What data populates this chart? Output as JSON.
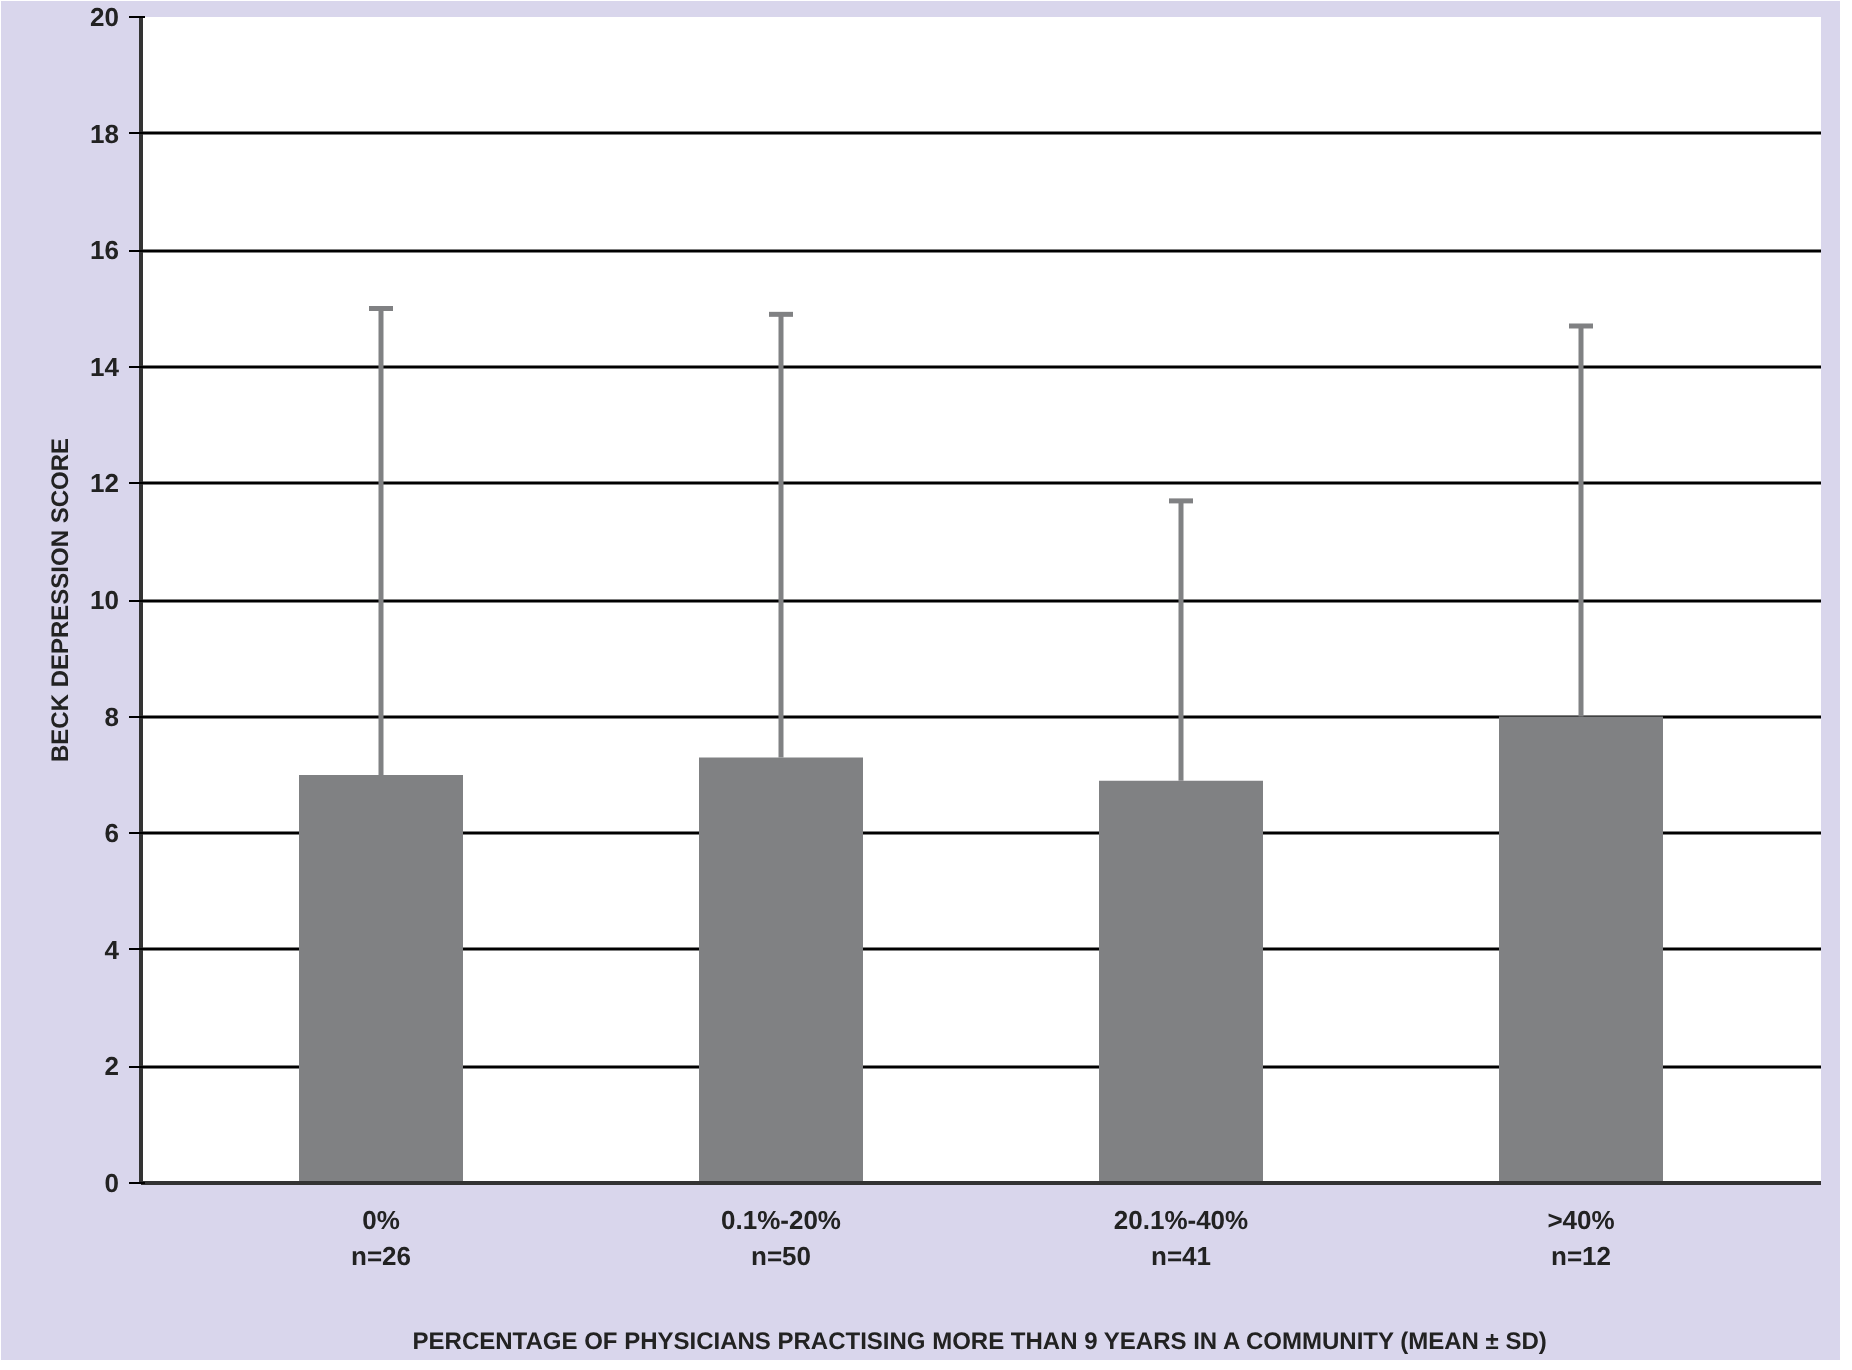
{
  "chart_data": {
    "type": "bar",
    "xlabel": "PERCENTAGE OF PHYSICIANS PRACTISING MORE THAN 9 YEARS IN A COMMUNITY (MEAN ± SD)",
    "ylabel": "BECK DEPRESSION SCORE",
    "categories": [
      "0%\nn=26",
      "0.1%-20%\nn=50",
      "20.1%-40%\nn=41",
      ">40%\nn=12"
    ],
    "values": [
      7.0,
      7.3,
      6.9,
      8.0
    ],
    "errors": [
      [
        7.0,
        15.0
      ],
      [
        7.3,
        14.9
      ],
      [
        6.9,
        11.7
      ],
      [
        8.0,
        14.7
      ]
    ],
    "color": "#808183",
    "ylim": [
      0,
      20
    ],
    "yticks": [
      0,
      2,
      4,
      6,
      8,
      10,
      12,
      14,
      16,
      18,
      20
    ],
    "grid": "y"
  }
}
